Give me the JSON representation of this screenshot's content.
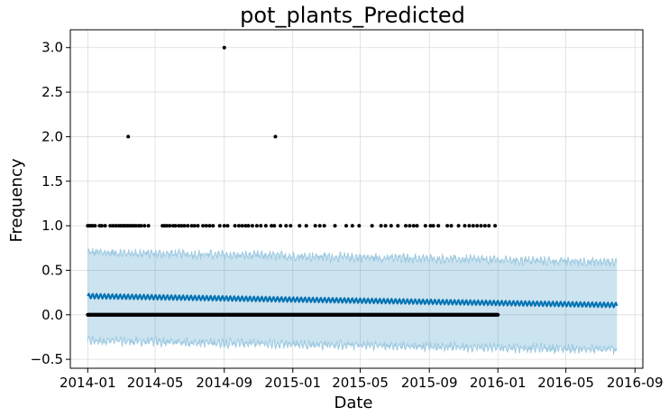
{
  "chart_data": {
    "type": "scatter",
    "title": "pot_plants_Predicted",
    "xlabel": "Date",
    "ylabel": "Frequency",
    "x_range": [
      "2013-12-01",
      "2016-09-15"
    ],
    "ylim": [
      -0.6,
      3.2
    ],
    "x_ticks": [
      "2014-01",
      "2014-05",
      "2014-09",
      "2015-01",
      "2015-05",
      "2015-09",
      "2016-01",
      "2016-05",
      "2016-09"
    ],
    "y_ticks": [
      -0.5,
      0.0,
      0.5,
      1.0,
      1.5,
      2.0,
      2.5,
      3.0
    ],
    "y_tick_labels": [
      "−0.5",
      "0.0",
      "0.5",
      "1.0",
      "1.5",
      "2.0",
      "2.5",
      "3.0"
    ],
    "grid": true,
    "observed_range": [
      "2014-01-01",
      "2016-01-01"
    ],
    "forecast_range": [
      "2014-01-01",
      "2016-07-31"
    ],
    "observed_points_other": [
      {
        "x": "2014-03-14",
        "y": 2.0
      },
      {
        "x": "2014-09-01",
        "y": 3.0
      },
      {
        "x": "2014-12-01",
        "y": 2.0
      }
    ],
    "observed_ones_dates": [
      "2014-01-01",
      "2014-01-04",
      "2014-01-07",
      "2014-01-10",
      "2014-01-14",
      "2014-01-22",
      "2014-01-26",
      "2014-02-01",
      "2014-02-10",
      "2014-02-15",
      "2014-02-20",
      "2014-02-25",
      "2014-03-01",
      "2014-03-05",
      "2014-03-08",
      "2014-03-12",
      "2014-03-16",
      "2014-03-20",
      "2014-03-24",
      "2014-03-28",
      "2014-04-02",
      "2014-04-06",
      "2014-04-12",
      "2014-04-19",
      "2014-05-14",
      "2014-05-18",
      "2014-05-22",
      "2014-05-27",
      "2014-06-02",
      "2014-06-06",
      "2014-06-12",
      "2014-06-17",
      "2014-06-22",
      "2014-06-28",
      "2014-07-05",
      "2014-07-10",
      "2014-07-16",
      "2014-07-25",
      "2014-07-31",
      "2014-08-06",
      "2014-08-12",
      "2014-08-24",
      "2014-09-01",
      "2014-09-07",
      "2014-09-20",
      "2014-09-27",
      "2014-10-03",
      "2014-10-09",
      "2014-10-14",
      "2014-10-21",
      "2014-10-29",
      "2014-11-05",
      "2014-11-14",
      "2014-11-24",
      "2014-11-29",
      "2014-12-10",
      "2014-12-20",
      "2014-12-28",
      "2015-01-13",
      "2015-01-25",
      "2015-02-10",
      "2015-02-18",
      "2015-02-26",
      "2015-03-17",
      "2015-04-06",
      "2015-04-17",
      "2015-04-29",
      "2015-05-22",
      "2015-06-07",
      "2015-06-15",
      "2015-06-25",
      "2015-07-07",
      "2015-07-21",
      "2015-07-28",
      "2015-08-04",
      "2015-08-10",
      "2015-08-25",
      "2015-09-03",
      "2015-09-08",
      "2015-09-17",
      "2015-10-03",
      "2015-10-10",
      "2015-10-23",
      "2015-11-03",
      "2015-11-11",
      "2015-11-18",
      "2015-11-25",
      "2015-12-02",
      "2015-12-09",
      "2015-12-16",
      "2015-12-27"
    ],
    "observed_zeros": {
      "start": "2014-01-01",
      "end": "2016-01-01",
      "y": 0.0
    },
    "series": [
      {
        "kind": "forecast",
        "color": "#0072B2",
        "start_value": 0.21,
        "end_value": 0.11,
        "weekly_amplitude": 0.025
      },
      {
        "kind": "uncertainty_interval",
        "color": "#0072B2",
        "fill_opacity": 0.2,
        "upper_start": 0.7,
        "upper_end": 0.59,
        "lower_start": -0.29,
        "lower_end": -0.39
      }
    ]
  }
}
